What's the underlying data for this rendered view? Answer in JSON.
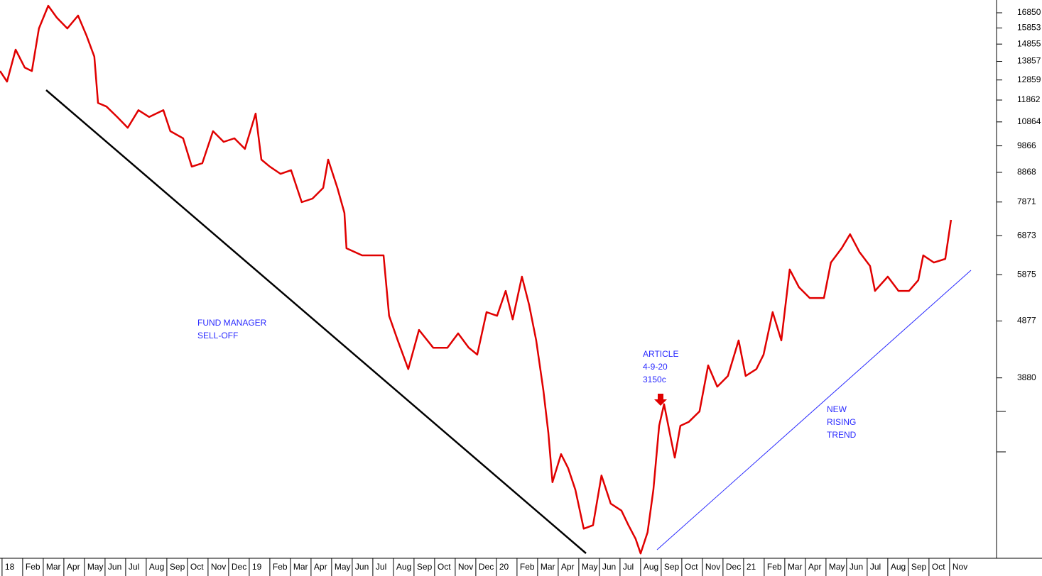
{
  "chart_data": {
    "type": "line",
    "log_scale": true,
    "color": "#e00000",
    "annotations": [
      {
        "lines": [
          "FUND MANAGER",
          "SELL-OFF"
        ]
      },
      {
        "lines": [
          "ARTICLE",
          "4-9-20",
          "3150c"
        ]
      },
      {
        "lines": [
          "NEW",
          "RISING",
          "TREND"
        ]
      }
    ],
    "x": [
      -0.1,
      0.24,
      0.66,
      1.1,
      1.45,
      1.79,
      2.24,
      2.66,
      3.17,
      3.69,
      4.1,
      4.48,
      4.66,
      5.07,
      5.59,
      6.1,
      6.62,
      7.14,
      7.83,
      8.17,
      8.79,
      9.21,
      9.72,
      10.24,
      10.76,
      11.28,
      11.79,
      12.31,
      12.59,
      13.0,
      13.52,
      14.03,
      14.55,
      15.07,
      15.59,
      15.83,
      16.28,
      16.62,
      16.72,
      17.48,
      18.52,
      18.79,
      19.21,
      19.72,
      20.24,
      20.93,
      21.62,
      22.14,
      22.66,
      23.07,
      23.52,
      24.03,
      24.45,
      24.79,
      25.24,
      25.59,
      25.93,
      26.28,
      26.52,
      26.72,
      27.14,
      27.48,
      27.83,
      28.24,
      28.69,
      29.1,
      29.55,
      30.07,
      30.41,
      30.76,
      31.0,
      31.34,
      31.62,
      31.9,
      32.14,
      32.48,
      32.66,
      32.93,
      33.34,
      33.86,
      34.28,
      34.72,
      35.24,
      35.76,
      36.1,
      36.62,
      36.97,
      37.41,
      37.83,
      38.24,
      38.69,
      39.21,
      39.9,
      40.24,
      40.76,
      41.17,
      41.62,
      42.14,
      42.38,
      43.0,
      43.52,
      44.03,
      44.48,
      44.72,
      45.24,
      45.79,
      46.07
    ],
    "values": [
      13330,
      12775,
      14525,
      13520,
      13330,
      15820,
      17335,
      16520,
      15820,
      16660,
      15370,
      14125,
      11725,
      11555,
      11080,
      10610,
      11390,
      11080,
      11390,
      10465,
      10170,
      9075,
      9200,
      10465,
      10025,
      10170,
      9745,
      11235,
      9335,
      9075,
      8815,
      8945,
      7865,
      7980,
      8330,
      9335,
      8330,
      7535,
      6535,
      6350,
      6350,
      4980,
      4510,
      4020,
      4705,
      4380,
      4380,
      4640,
      4380,
      4260,
      5055,
      4980,
      5505,
      4910,
      5830,
      5200,
      4510,
      3690,
      3110,
      2550,
      2855,
      2700,
      2475,
      2115,
      2145,
      2620,
      2340,
      2275,
      2145,
      2030,
      1915,
      2085,
      2475,
      3200,
      3490,
      3025,
      2815,
      3200,
      3250,
      3390,
      4080,
      3745,
      3910,
      4510,
      3910,
      4020,
      4260,
      5055,
      4510,
      6000,
      5585,
      5350,
      5350,
      6170,
      6535,
      6915,
      6440,
      6085,
      5505,
      5830,
      5505,
      5505,
      5745,
      6350,
      6170,
      6260,
      7325
    ],
    "xlim": [
      -0.1,
      48.28
    ],
    "ylim": [
      1878,
      17738
    ],
    "yticks": [
      16850,
      15853,
      14855,
      13857,
      12859,
      11862,
      10864,
      9866,
      8868,
      7871,
      6873,
      5875,
      4877,
      3880
    ],
    "xticks": [
      {
        "value": 0,
        "label": "18"
      },
      {
        "value": 1,
        "label": "Feb"
      },
      {
        "value": 2,
        "label": "Mar"
      },
      {
        "value": 3,
        "label": "Apr"
      },
      {
        "value": 4,
        "label": "May"
      },
      {
        "value": 5,
        "label": "Jun"
      },
      {
        "value": 6,
        "label": "Jul"
      },
      {
        "value": 7,
        "label": "Aug"
      },
      {
        "value": 8,
        "label": "Sep"
      },
      {
        "value": 9,
        "label": "Oct"
      },
      {
        "value": 10,
        "label": "Nov"
      },
      {
        "value": 11,
        "label": "Dec"
      },
      {
        "value": 12,
        "label": "19"
      },
      {
        "value": 13,
        "label": "Feb"
      },
      {
        "value": 14,
        "label": "Mar"
      },
      {
        "value": 15,
        "label": "Apr"
      },
      {
        "value": 16,
        "label": "May"
      },
      {
        "value": 17,
        "label": "Jun"
      },
      {
        "value": 18,
        "label": "Jul"
      },
      {
        "value": 19,
        "label": "Aug"
      },
      {
        "value": 20,
        "label": "Sep"
      },
      {
        "value": 21,
        "label": "Oct"
      },
      {
        "value": 22,
        "label": "Nov"
      },
      {
        "value": 23,
        "label": "Dec"
      },
      {
        "value": 24,
        "label": "20"
      },
      {
        "value": 25,
        "label": "Feb"
      },
      {
        "value": 26,
        "label": "Mar"
      },
      {
        "value": 27,
        "label": "Apr"
      },
      {
        "value": 28,
        "label": "May"
      },
      {
        "value": 29,
        "label": "Jun"
      },
      {
        "value": 30,
        "label": "Jul"
      },
      {
        "value": 31,
        "label": "Aug"
      },
      {
        "value": 32,
        "label": "Sep"
      },
      {
        "value": 33,
        "label": "Oct"
      },
      {
        "value": 34,
        "label": "Nov"
      },
      {
        "value": 35,
        "label": "Dec"
      },
      {
        "value": 36,
        "label": "21"
      },
      {
        "value": 37,
        "label": "Feb"
      },
      {
        "value": 38,
        "label": "Mar"
      },
      {
        "value": 39,
        "label": "Apr"
      },
      {
        "value": 40,
        "label": "May"
      },
      {
        "value": 41,
        "label": "Jun"
      },
      {
        "value": 42,
        "label": "Jul"
      },
      {
        "value": 43,
        "label": "Aug"
      },
      {
        "value": 44,
        "label": "Sep"
      },
      {
        "value": 45,
        "label": "Oct"
      },
      {
        "value": 46,
        "label": "Nov"
      }
    ]
  }
}
